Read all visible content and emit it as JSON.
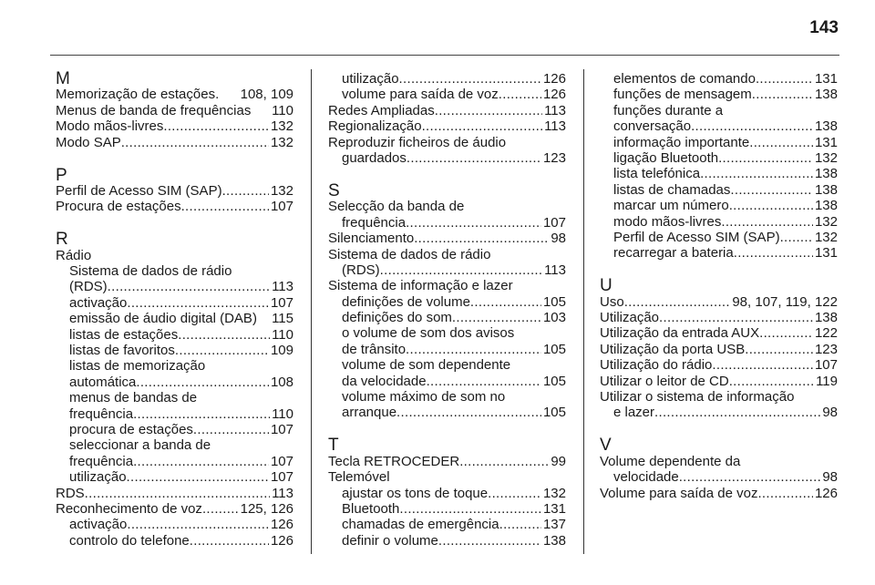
{
  "page_number": "143",
  "columns": [
    [
      {
        "h": "M"
      },
      {
        "t": "Memorização de estações.",
        "p": "108, 109",
        "i": 0,
        "leader": false
      },
      {
        "t": "Menus de banda de frequências",
        "p": "110",
        "i": 0,
        "leader": false
      },
      {
        "t": "Modo mãos-livres",
        "p": "132",
        "i": 0
      },
      {
        "t": "Modo SAP",
        "p": "132",
        "i": 0
      },
      {
        "h": "P"
      },
      {
        "t": "Perfil de Acesso SIM (SAP)",
        "p": "132",
        "i": 0
      },
      {
        "t": "Procura de estações",
        "p": "107",
        "i": 0
      },
      {
        "h": "R"
      },
      {
        "t": "Rádio",
        "i": 0
      },
      {
        "t": "Sistema de dados de rádio",
        "i": 1
      },
      {
        "t": "(RDS)",
        "p": "113",
        "i": 1
      },
      {
        "t": "activação",
        "p": "107",
        "i": 1
      },
      {
        "t": "emissão de áudio digital (DAB)",
        "p": "115",
        "i": 1,
        "leader": false
      },
      {
        "t": "listas de estações",
        "p": "110",
        "i": 1
      },
      {
        "t": "listas de favoritos",
        "p": "109",
        "i": 1
      },
      {
        "t": "listas de memorização",
        "i": 1
      },
      {
        "t": "automática",
        "p": "108",
        "i": 1
      },
      {
        "t": "menus de bandas de",
        "i": 1
      },
      {
        "t": "frequência",
        "p": "110",
        "i": 1
      },
      {
        "t": "procura de estações",
        "p": "107",
        "i": 1
      },
      {
        "t": "seleccionar a banda de",
        "i": 1
      },
      {
        "t": "frequência",
        "p": "107",
        "i": 1
      },
      {
        "t": "utilização",
        "p": "107",
        "i": 1
      },
      {
        "t": "RDS",
        "p": "113",
        "i": 0
      },
      {
        "t": "Reconhecimento de voz",
        "p": "125, 126",
        "i": 0
      },
      {
        "t": "activação",
        "p": "126",
        "i": 1
      },
      {
        "t": "controlo do telefone",
        "p": "126",
        "i": 1
      }
    ],
    [
      {
        "t": "utilização",
        "p": "126",
        "i": 1
      },
      {
        "t": "volume para saída de voz",
        "p": "126",
        "i": 1
      },
      {
        "t": "Redes Ampliadas",
        "p": "113",
        "i": 0
      },
      {
        "t": "Regionalização",
        "p": "113",
        "i": 0
      },
      {
        "t": "Reproduzir ficheiros de áudio",
        "i": 0
      },
      {
        "t": "guardados",
        "p": "123",
        "i": 1
      },
      {
        "h": "S"
      },
      {
        "t": "Selecção da banda de",
        "i": 0
      },
      {
        "t": "frequência",
        "p": "107",
        "i": 1
      },
      {
        "t": "Silenciamento",
        "p": "98",
        "i": 0
      },
      {
        "t": "Sistema de dados de rádio",
        "i": 0
      },
      {
        "t": "(RDS) ",
        "p": "113",
        "i": 1
      },
      {
        "t": "Sistema de informação e lazer",
        "i": 0
      },
      {
        "t": "definições de volume",
        "p": "105",
        "i": 1
      },
      {
        "t": "definições do som",
        "p": "103",
        "i": 1
      },
      {
        "t": "o volume de som dos avisos",
        "i": 1
      },
      {
        "t": "de trânsito",
        "p": "105",
        "i": 1
      },
      {
        "t": "volume de som dependente",
        "i": 1
      },
      {
        "t": "da velocidade",
        "p": "105",
        "i": 1
      },
      {
        "t": "volume máximo de som no",
        "i": 1
      },
      {
        "t": "arranque",
        "p": "105",
        "i": 1
      },
      {
        "h": "T"
      },
      {
        "t": "Tecla RETROCEDER",
        "p": "99",
        "i": 0
      },
      {
        "t": "Telemóvel",
        "i": 0
      },
      {
        "t": "ajustar os tons de toque",
        "p": "132",
        "i": 1
      },
      {
        "t": "Bluetooth",
        "p": "131",
        "i": 1
      },
      {
        "t": "chamadas de emergência",
        "p": "137",
        "i": 1
      },
      {
        "t": "definir o volume",
        "p": "138",
        "i": 1
      }
    ],
    [
      {
        "t": "elementos de comando",
        "p": "131",
        "i": 1
      },
      {
        "t": "funções de mensagem",
        "p": "138",
        "i": 1
      },
      {
        "t": "funções durante a",
        "i": 1
      },
      {
        "t": "conversação",
        "p": "138",
        "i": 1
      },
      {
        "t": "informação importante",
        "p": "131",
        "i": 1
      },
      {
        "t": "ligação Bluetooth",
        "p": "132",
        "i": 1
      },
      {
        "t": "lista telefónica",
        "p": "138",
        "i": 1
      },
      {
        "t": "listas de chamadas",
        "p": "138",
        "i": 1
      },
      {
        "t": "marcar um número",
        "p": "138",
        "i": 1
      },
      {
        "t": "modo mãos-livres",
        "p": "132",
        "i": 1
      },
      {
        "t": "Perfil de Acesso SIM (SAP)",
        "p": "132",
        "i": 1
      },
      {
        "t": "recarregar a bateria",
        "p": "131",
        "i": 1
      },
      {
        "h": "U"
      },
      {
        "t": "Uso",
        "p": "98, 107, 119, 122",
        "i": 0
      },
      {
        "t": "Utilização",
        "p": "138",
        "i": 0
      },
      {
        "t": "Utilização da entrada AUX",
        "p": "122",
        "i": 0
      },
      {
        "t": "Utilização da porta USB",
        "p": "123",
        "i": 0
      },
      {
        "t": "Utilização do rádio",
        "p": "107",
        "i": 0
      },
      {
        "t": "Utilizar o leitor de CD",
        "p": "119",
        "i": 0
      },
      {
        "t": "Utilizar o sistema de informação",
        "i": 0
      },
      {
        "t": "e lazer",
        "p": "98",
        "i": 1
      },
      {
        "h": "V"
      },
      {
        "t": "Volume dependente da",
        "i": 0
      },
      {
        "t": "velocidade",
        "p": "98",
        "i": 1
      },
      {
        "t": "Volume para saída de voz",
        "p": "126",
        "i": 0
      }
    ]
  ]
}
